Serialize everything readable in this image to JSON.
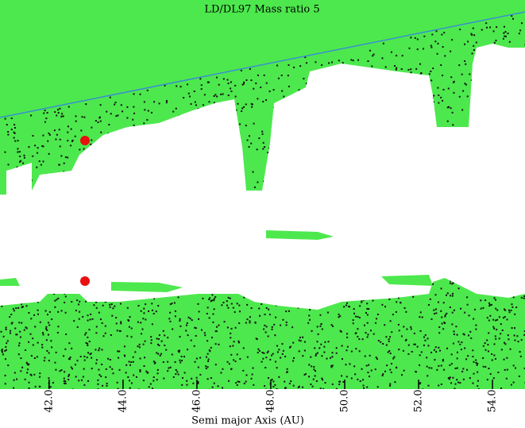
{
  "chart_data": {
    "type": "scatter",
    "title": "LD/DL97    Mass ratio 5",
    "xlabel": "Semi  major Axis (AU)",
    "xlim": [
      40.67,
      54.88
    ],
    "xticks": [
      {
        "value": 42,
        "label": "42.0"
      },
      {
        "value": 44,
        "label": "44.0"
      },
      {
        "value": 46,
        "label": "46.0"
      },
      {
        "value": 48,
        "label": "48.0"
      },
      {
        "value": 50,
        "label": "50.0"
      },
      {
        "value": 52,
        "label": "52.0"
      },
      {
        "value": 54,
        "label": "54.0"
      }
    ]
  }
}
